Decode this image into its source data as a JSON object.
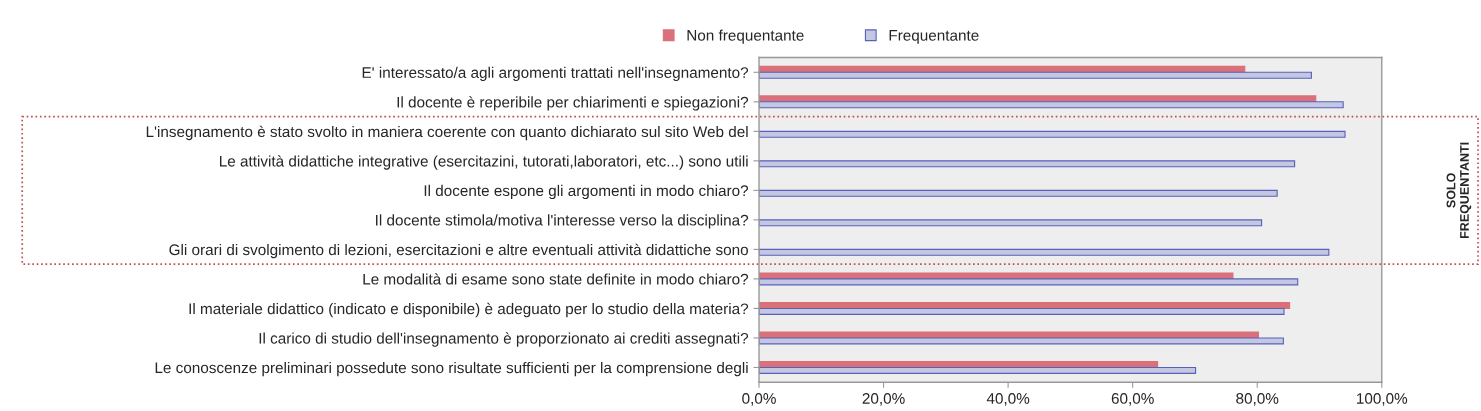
{
  "chart_data": {
    "type": "bar",
    "orientation": "horizontal",
    "categories": [
      "E' interessato/a agli argomenti trattati nell'insegnamento?",
      "Il docente è reperibile per chiarimenti e spiegazioni?",
      "L'insegnamento è stato svolto in maniera coerente con quanto dichiarato sul sito Web del",
      "Le attività didattiche integrative (esercitazini, tutorati,laboratori, etc...) sono utili",
      "Il docente espone gli argomenti in modo chiaro?",
      "Il docente stimola/motiva l'interesse verso la disciplina?",
      "Gli orari di svolgimento di lezioni, esercitazioni e altre eventuali attività didattiche sono",
      "Le modalità di esame sono state definite in modo chiaro?",
      "Il materiale didattico (indicato e disponibile) è adeguato per lo studio della materia?",
      "Il carico di studio dell'insegnamento è proporzionato ai crediti assegnati?",
      "Le conoscenze preliminari possedute sono risultate sufficienti per la comprensione degli"
    ],
    "series": [
      {
        "name": "Non frequentante",
        "color": "#d9707a",
        "values": [
          78.0,
          89.4,
          null,
          null,
          null,
          null,
          null,
          76.1,
          85.2,
          80.2,
          64.0
        ]
      },
      {
        "name": "Frequentante",
        "color": "#c4c7e2",
        "values": [
          88.7,
          93.8,
          94.1,
          86.0,
          83.2,
          80.7,
          91.5,
          86.5,
          84.3,
          84.2,
          70.1
        ]
      }
    ],
    "xlim": [
      0,
      100
    ],
    "xticks": [
      {
        "value": 0,
        "label": "0,0%"
      },
      {
        "value": 20,
        "label": "20,0%"
      },
      {
        "value": 40,
        "label": "40,0%"
      },
      {
        "value": 60,
        "label": "60,0%"
      },
      {
        "value": 80,
        "label": "80,0%"
      },
      {
        "value": 100,
        "label": "100,0%"
      }
    ],
    "annotations": [
      "SOLO FREQUENTANTI"
    ],
    "legend": "top",
    "grid": false
  }
}
